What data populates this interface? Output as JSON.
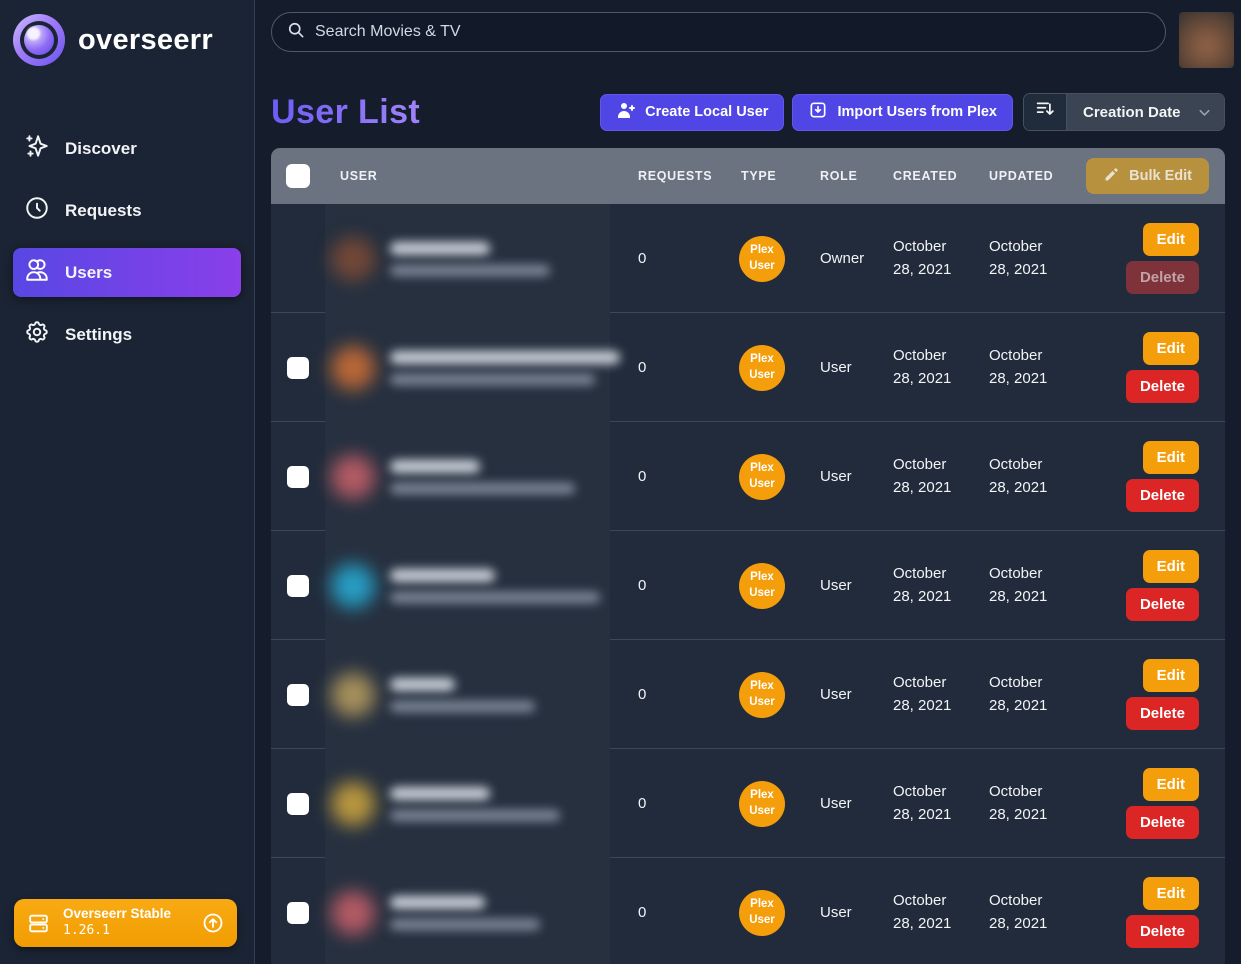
{
  "app": {
    "wordmark": "overseerr"
  },
  "sidebar": {
    "items": [
      {
        "label": "Discover",
        "icon": "sparkles-icon",
        "active": false
      },
      {
        "label": "Requests",
        "icon": "clock-icon",
        "active": false
      },
      {
        "label": "Users",
        "icon": "users-icon",
        "active": true
      },
      {
        "label": "Settings",
        "icon": "gear-icon",
        "active": false
      }
    ],
    "version": {
      "title": "Overseerr Stable",
      "number": "1.26.1"
    }
  },
  "topbar": {
    "search_placeholder": "Search Movies & TV"
  },
  "page": {
    "title": "User List",
    "create_local_user_label": "Create Local User",
    "import_users_label": "Import Users from Plex",
    "sort_selected": "Creation Date"
  },
  "table": {
    "columns": [
      "USER",
      "REQUESTS",
      "TYPE",
      "ROLE",
      "CREATED",
      "UPDATED"
    ],
    "bulk_edit_label": "Bulk Edit",
    "edit_label": "Edit",
    "delete_label": "Delete",
    "plex_badge": {
      "line1": "Plex",
      "line2": "User"
    },
    "rows": [
      {
        "requests": "0",
        "type": "Plex User",
        "role": "Owner",
        "created": "October 28, 2021",
        "updated": "October 28, 2021",
        "has_checkbox": false,
        "delete_enabled": false,
        "avatar_color": "#7b4a36",
        "name_blur_width": 100,
        "email_blur_width": 160
      },
      {
        "requests": "0",
        "type": "Plex User",
        "role": "User",
        "created": "October 28, 2021",
        "updated": "October 28, 2021",
        "has_checkbox": true,
        "delete_enabled": true,
        "avatar_color": "#c96d35",
        "name_blur_width": 230,
        "email_blur_width": 205
      },
      {
        "requests": "0",
        "type": "Plex User",
        "role": "User",
        "created": "October 28, 2021",
        "updated": "October 28, 2021",
        "has_checkbox": true,
        "delete_enabled": true,
        "avatar_color": "#c25f68",
        "name_blur_width": 90,
        "email_blur_width": 185
      },
      {
        "requests": "0",
        "type": "Plex User",
        "role": "User",
        "created": "October 28, 2021",
        "updated": "October 28, 2021",
        "has_checkbox": true,
        "delete_enabled": true,
        "avatar_color": "#27a9d1",
        "name_blur_width": 105,
        "email_blur_width": 210
      },
      {
        "requests": "0",
        "type": "Plex User",
        "role": "User",
        "created": "October 28, 2021",
        "updated": "October 28, 2021",
        "has_checkbox": true,
        "delete_enabled": true,
        "avatar_color": "#b49a5e",
        "name_blur_width": 65,
        "email_blur_width": 145
      },
      {
        "requests": "0",
        "type": "Plex User",
        "role": "User",
        "created": "October 28, 2021",
        "updated": "October 28, 2021",
        "has_checkbox": true,
        "delete_enabled": true,
        "avatar_color": "#c9a23e",
        "name_blur_width": 100,
        "email_blur_width": 170
      },
      {
        "requests": "0",
        "type": "Plex User",
        "role": "User",
        "created": "October 28, 2021",
        "updated": "October 28, 2021",
        "has_checkbox": true,
        "delete_enabled": true,
        "avatar_color": "#c25f68",
        "name_blur_width": 95,
        "email_blur_width": 150
      }
    ]
  },
  "colors": {
    "accent_indigo": "#4f46e5",
    "amber": "#f59e0b",
    "red": "#dc2626",
    "header_gray": "#6b7280",
    "version_orange": "#f5a20c",
    "row_bg": "#212b3b",
    "sidebar_bg": "#1b2434",
    "page_bg": "#151d2c"
  }
}
